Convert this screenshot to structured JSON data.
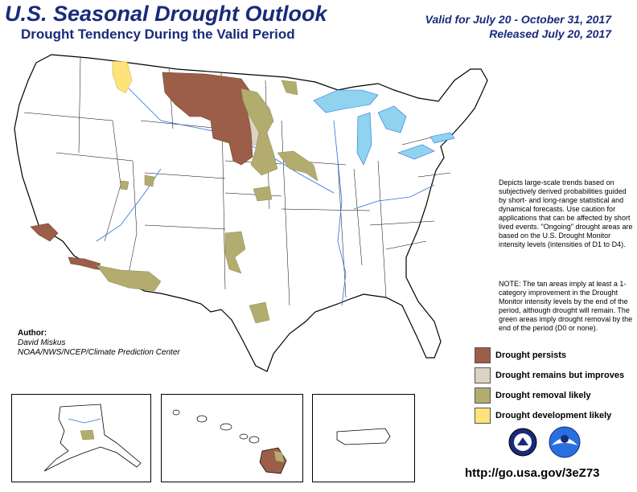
{
  "header": {
    "title": "U.S. Seasonal Drought Outlook",
    "subtitle": "Drought Tendency During the Valid Period",
    "valid": "Valid for July 20 - October 31, 2017",
    "released": "Released July 20, 2017"
  },
  "description": "Depicts large-scale trends based on subjectively derived probabilities guided by short- and long-range statistical and dynamical forecasts. Use caution for applications that can be affected by short lived events. \"Ongoing\" drought areas are based on the U.S. Drought Monitor intensity levels (intensities of D1 to D4).",
  "note": "NOTE: The tan areas imply at least a 1-category improvement in the Drought Monitor intensity levels by the end of the period, although drought will remain. The green areas imply drought removal by the end of the period (D0 or none).",
  "legend": [
    {
      "label": "Drought persists",
      "color": "#9c5e48"
    },
    {
      "label": "Drought remains but improves",
      "color": "#ddd3c3"
    },
    {
      "label": "Drought removal likely",
      "color": "#b2ad6e"
    },
    {
      "label": "Drought development likely",
      "color": "#fde37a"
    }
  ],
  "author": {
    "heading": "Author:",
    "name": "David Miskus",
    "org": "NOAA/NWS/NCEP/Climate Prediction Center"
  },
  "url": "http://go.usa.gov/3eZ73",
  "colors": {
    "title": "#1a2a7a",
    "water": "#8fd3ef",
    "river": "#2a6fdf",
    "persists": "#9c5e48",
    "improves": "#ddd3c3",
    "removal": "#b2ad6e",
    "development": "#fde37a"
  },
  "logos": [
    "noaa-seal-icon",
    "nws-logo-icon"
  ]
}
